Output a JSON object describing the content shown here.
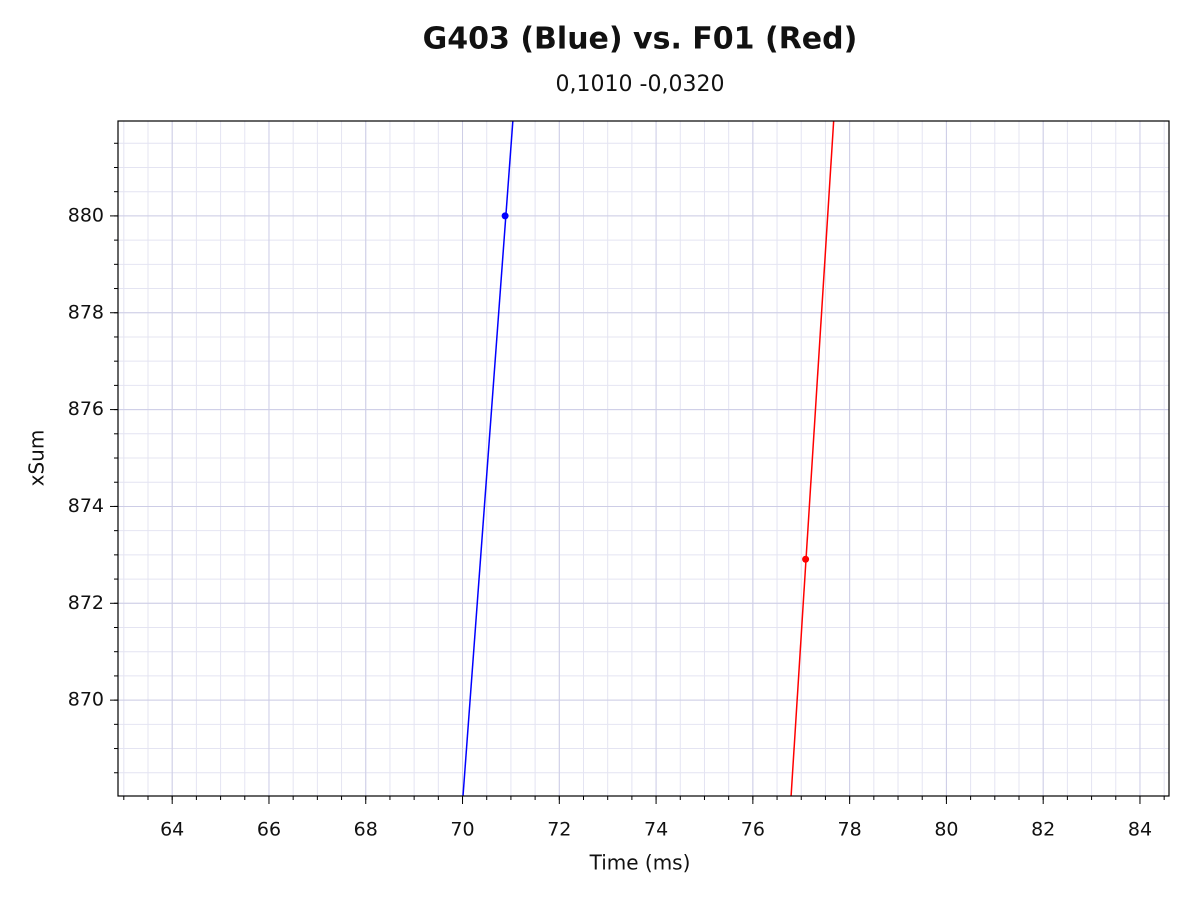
{
  "chart_data": {
    "type": "line",
    "title": "G403 (Blue) vs. F01 (Red)",
    "subtitle": "0,1010 -0,0320",
    "x_label": "Time (ms)",
    "y_label": "xSum",
    "xlim": [
      62.88,
      84.6
    ],
    "ylim": [
      868.02,
      881.96
    ],
    "xticks": [
      64,
      66,
      68,
      70,
      72,
      74,
      76,
      78,
      80,
      82,
      84
    ],
    "yticks": [
      870,
      872,
      874,
      876,
      878,
      880
    ],
    "minor_step": 0.5,
    "grid": true,
    "series": [
      {
        "color": "#0000ff",
        "x": [
          70.01,
          71.04
        ],
        "values": [
          868.02,
          881.96
        ],
        "marker": {
          "x": 70.88,
          "y": 880
        }
      },
      {
        "color": "#ff0000",
        "x": [
          76.79,
          77.67
        ],
        "values": [
          868.02,
          881.96
        ],
        "marker": {
          "x": 77.09,
          "y": 872.91
        }
      }
    ]
  }
}
